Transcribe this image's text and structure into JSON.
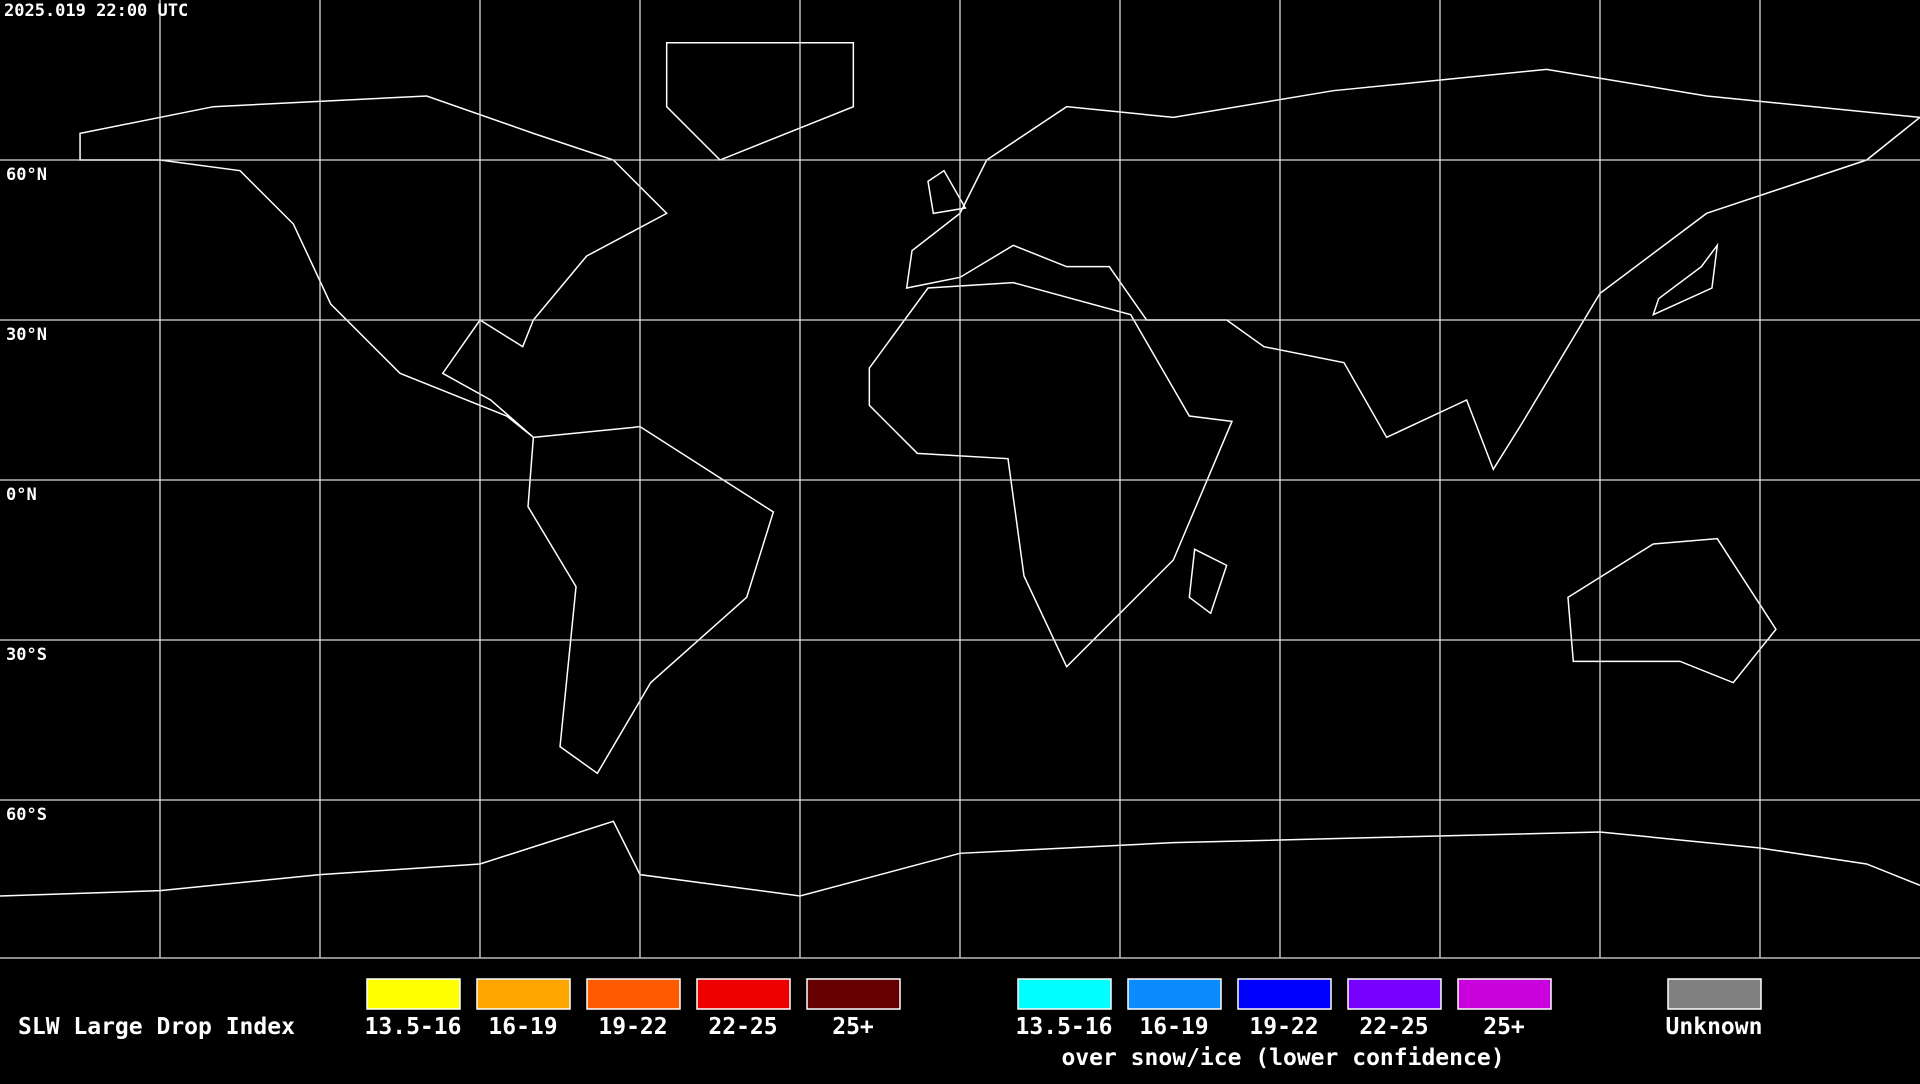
{
  "timestamp": "2025.019 22:00 UTC",
  "latitude_labels": [
    "60°N",
    "30°N",
    "0°N",
    "30°S",
    "60°S"
  ],
  "legend": {
    "title": "SLW Large Drop Index",
    "items": [
      {
        "label": "13.5-16",
        "color": "#ffff00"
      },
      {
        "label": "16-19",
        "color": "#ffa500"
      },
      {
        "label": "19-22",
        "color": "#ff5a00"
      },
      {
        "label": "22-25",
        "color": "#ee0000"
      },
      {
        "label": "25+",
        "color": "#640000"
      }
    ],
    "snow_items": [
      {
        "label": "13.5-16",
        "color": "#00ffff"
      },
      {
        "label": "16-19",
        "color": "#0a8cff"
      },
      {
        "label": "19-22",
        "color": "#0000ff"
      },
      {
        "label": "22-25",
        "color": "#7800ff"
      },
      {
        "label": "25+",
        "color": "#c800dc"
      }
    ],
    "snow_caption": "over snow/ice (lower confidence)",
    "unknown": {
      "label": "Unknown",
      "color": "#808080"
    }
  }
}
